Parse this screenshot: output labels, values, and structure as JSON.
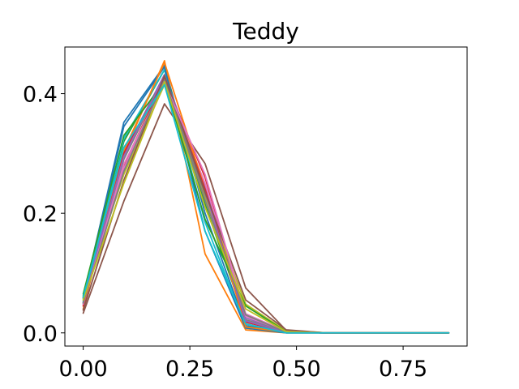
{
  "chart_data": {
    "type": "line",
    "title": "Teddy",
    "xlabel": "",
    "ylabel": "",
    "xlim": [
      -0.043,
      0.9
    ],
    "ylim": [
      -0.022,
      0.478
    ],
    "grid": false,
    "xticks": [
      0.0,
      0.25,
      0.5,
      0.75
    ],
    "xtick_labels": [
      "0.00",
      "0.25",
      "0.50",
      "0.75"
    ],
    "yticks": [
      0.0,
      0.2,
      0.4
    ],
    "ytick_labels": [
      "0.0",
      "0.2",
      "0.4"
    ],
    "x": [
      0.0,
      0.0952,
      0.1905,
      0.2857,
      0.381,
      0.4762,
      0.5714,
      0.6667,
      0.7619,
      0.8571
    ],
    "series": [
      {
        "color": "#1f77b4",
        "values": [
          0.058,
          0.352,
          0.447,
          0.2,
          0.012,
          0.001,
          0,
          0,
          0,
          0
        ]
      },
      {
        "color": "#ff7f0e",
        "values": [
          0.045,
          0.3,
          0.455,
          0.132,
          0.005,
          0.0,
          0,
          0,
          0,
          0
        ]
      },
      {
        "color": "#2ca02c",
        "values": [
          0.062,
          0.32,
          0.44,
          0.215,
          0.02,
          0.001,
          0,
          0,
          0,
          0
        ]
      },
      {
        "color": "#d62728",
        "values": [
          0.05,
          0.28,
          0.425,
          0.26,
          0.03,
          0.002,
          0,
          0,
          0,
          0
        ]
      },
      {
        "color": "#9467bd",
        "values": [
          0.055,
          0.3,
          0.432,
          0.245,
          0.025,
          0.001,
          0,
          0,
          0,
          0
        ]
      },
      {
        "color": "#8c564b",
        "values": [
          0.033,
          0.22,
          0.383,
          0.283,
          0.075,
          0.004,
          0,
          0,
          0,
          0
        ]
      },
      {
        "color": "#e377c2",
        "values": [
          0.052,
          0.275,
          0.42,
          0.25,
          0.032,
          0.002,
          0,
          0,
          0,
          0
        ]
      },
      {
        "color": "#7f7f7f",
        "values": [
          0.048,
          0.29,
          0.428,
          0.23,
          0.022,
          0.001,
          0,
          0,
          0,
          0
        ]
      },
      {
        "color": "#bcbd22",
        "values": [
          0.06,
          0.265,
          0.415,
          0.225,
          0.048,
          0.003,
          0,
          0,
          0,
          0
        ]
      },
      {
        "color": "#17becf",
        "values": [
          0.052,
          0.325,
          0.44,
          0.185,
          0.01,
          0.0,
          0,
          0,
          0,
          0
        ]
      },
      {
        "color": "#1f77b4",
        "values": [
          0.058,
          0.345,
          0.445,
          0.17,
          0.008,
          0.0,
          0,
          0,
          0,
          0
        ]
      },
      {
        "color": "#ff7f0e",
        "values": [
          0.04,
          0.305,
          0.452,
          0.24,
          0.01,
          0.001,
          0,
          0,
          0,
          0
        ]
      },
      {
        "color": "#2ca02c",
        "values": [
          0.065,
          0.33,
          0.42,
          0.19,
          0.045,
          0.002,
          0,
          0,
          0,
          0
        ]
      },
      {
        "color": "#d62728",
        "values": [
          0.045,
          0.3,
          0.427,
          0.24,
          0.018,
          0.001,
          0,
          0,
          0,
          0
        ]
      },
      {
        "color": "#9467bd",
        "values": [
          0.05,
          0.295,
          0.43,
          0.235,
          0.02,
          0.001,
          0,
          0,
          0,
          0
        ]
      },
      {
        "color": "#8c564b",
        "values": [
          0.038,
          0.255,
          0.43,
          0.235,
          0.055,
          0.005,
          0,
          0,
          0,
          0
        ]
      },
      {
        "color": "#e377c2",
        "values": [
          0.048,
          0.282,
          0.418,
          0.265,
          0.028,
          0.002,
          0,
          0,
          0,
          0
        ]
      },
      {
        "color": "#7f7f7f",
        "values": [
          0.05,
          0.27,
          0.423,
          0.222,
          0.03,
          0.001,
          0,
          0,
          0,
          0
        ]
      },
      {
        "color": "#bcbd22",
        "values": [
          0.055,
          0.25,
          0.42,
          0.21,
          0.04,
          0.002,
          0,
          0,
          0,
          0
        ]
      },
      {
        "color": "#17becf",
        "values": [
          0.06,
          0.31,
          0.415,
          0.17,
          0.015,
          0.0,
          0,
          0,
          0,
          0
        ]
      }
    ]
  }
}
